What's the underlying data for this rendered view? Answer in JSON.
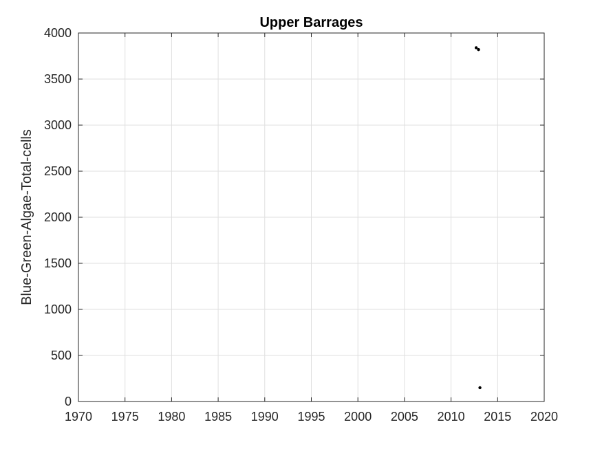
{
  "chart_data": {
    "type": "scatter",
    "title": "Upper Barrages",
    "xlabel": "",
    "ylabel": "Blue-Green-Algae-Total-cells",
    "xlim": [
      1970,
      2020
    ],
    "ylim": [
      0,
      4000
    ],
    "xticks": [
      1970,
      1975,
      1980,
      1985,
      1990,
      1995,
      2000,
      2005,
      2010,
      2015,
      2020
    ],
    "yticks": [
      0,
      500,
      1000,
      1500,
      2000,
      2500,
      3000,
      3500,
      4000
    ],
    "grid": true,
    "series": [
      {
        "x": [
          2012.7,
          2012.95,
          2013.1
        ],
        "y": [
          3840,
          3820,
          150
        ]
      }
    ],
    "colors": {
      "points": "#000000",
      "grid": "#dfdfdf",
      "axis": "#262626"
    }
  }
}
